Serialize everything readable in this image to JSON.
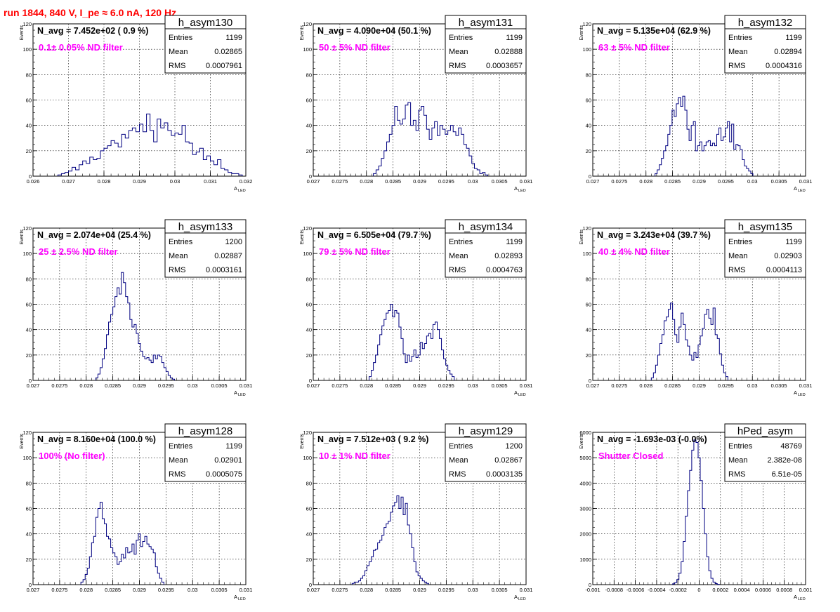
{
  "page": {
    "title": "run 1844,   840 V, I_pe ≈ 6.0 nA, 120 Hz"
  },
  "colors": {
    "histogram_line": "#000080",
    "filter_text": "#ff00ff",
    "title_text": "#ff0000",
    "grid": "#000000"
  },
  "chart_data": [
    {
      "type": "histogram",
      "hist_name": "h_asym130",
      "navg": "N_avg = 7.452e+02 ( 0.9 %)",
      "filter_label": "0.1± 0.05% ND filter",
      "stats": [
        [
          "Entries",
          "1199"
        ],
        [
          "Mean",
          "0.02865"
        ],
        [
          "RMS",
          "0.0007961"
        ]
      ],
      "ylabel": "Events",
      "xlabel": "A",
      "xlabel_sub": "LED",
      "xlim": [
        0.026,
        0.032
      ],
      "ylim": [
        0,
        120
      ],
      "xticks": [
        0.026,
        0.027,
        0.028,
        0.029,
        0.03,
        0.031,
        0.032
      ],
      "xtick_labels": [
        "0.026",
        "0.027",
        "0.028",
        "0.029",
        "0.03",
        "0.031",
        "0.032"
      ],
      "yticks": [
        0,
        20,
        40,
        60,
        80,
        100,
        120
      ],
      "ytick_labels": [
        "0",
        "20",
        "40",
        "60",
        "80",
        "100",
        "120"
      ],
      "x_start": 0.0267,
      "bin_width": 0.0001,
      "counts": [
        1,
        2,
        3,
        4,
        7,
        5,
        9,
        12,
        10,
        15,
        13,
        14,
        20,
        22,
        24,
        28,
        26,
        23,
        33,
        30,
        36,
        38,
        35,
        41,
        35,
        49,
        36,
        27,
        45,
        38,
        42,
        36,
        32,
        34,
        33,
        40,
        27,
        26,
        17,
        19,
        22,
        13,
        16,
        12,
        9,
        13,
        6,
        5,
        3,
        2,
        2,
        1
      ]
    },
    {
      "type": "histogram",
      "hist_name": "h_asym131",
      "navg": "N_avg = 4.090e+04 (50.1 %)",
      "filter_label": " 50 ± 5% ND filter",
      "stats": [
        [
          "Entries",
          "1199"
        ],
        [
          "Mean",
          "0.02888"
        ],
        [
          "RMS",
          "0.0003657"
        ]
      ],
      "ylabel": "Events",
      "xlabel": "A",
      "xlabel_sub": "LED",
      "xlim": [
        0.027,
        0.031
      ],
      "ylim": [
        0,
        120
      ],
      "xticks": [
        0.027,
        0.0275,
        0.028,
        0.0285,
        0.029,
        0.0295,
        0.03,
        0.0305,
        0.031
      ],
      "xtick_labels": [
        "0.027",
        "0.0275",
        "0.028",
        "0.0285",
        "0.029",
        "0.0295",
        "0.03",
        "0.0305",
        "0.031"
      ],
      "yticks": [
        0,
        20,
        40,
        60,
        80,
        100,
        120
      ],
      "ytick_labels": [
        "0",
        "20",
        "40",
        "60",
        "80",
        "100",
        "120"
      ],
      "x_start": 0.02813,
      "bin_width": 5e-05,
      "counts": [
        2,
        5,
        8,
        14,
        20,
        27,
        33,
        40,
        55,
        44,
        41,
        45,
        56,
        58,
        40,
        44,
        36,
        52,
        55,
        48,
        37,
        29,
        38,
        43,
        32,
        40,
        37,
        33,
        36,
        40,
        35,
        32,
        38,
        33,
        25,
        22,
        16,
        10,
        6,
        5,
        2,
        3,
        1
      ]
    },
    {
      "type": "histogram",
      "hist_name": "h_asym132",
      "navg": "N_avg = 5.135e+04 (62.9 %)",
      "filter_label": " 63 ± 5% ND filter",
      "stats": [
        [
          "Entries",
          "1199"
        ],
        [
          "Mean",
          "0.02894"
        ],
        [
          "RMS",
          "0.0004316"
        ]
      ],
      "ylabel": "Events",
      "xlabel": "A",
      "xlabel_sub": "LED",
      "xlim": [
        0.027,
        0.031
      ],
      "ylim": [
        0,
        120
      ],
      "xticks": [
        0.027,
        0.0275,
        0.028,
        0.0285,
        0.029,
        0.0295,
        0.03,
        0.0305,
        0.031
      ],
      "xtick_labels": [
        "0.027",
        "0.0275",
        "0.028",
        "0.0285",
        "0.029",
        "0.0295",
        "0.03",
        "0.0305",
        "0.031"
      ],
      "yticks": [
        0,
        20,
        40,
        60,
        80,
        100,
        120
      ],
      "ytick_labels": [
        "0",
        "20",
        "40",
        "60",
        "80",
        "100",
        "120"
      ],
      "x_start": 0.02817,
      "bin_width": 4e-05,
      "counts": [
        2,
        5,
        9,
        14,
        20,
        24,
        33,
        40,
        52,
        47,
        57,
        62,
        55,
        63,
        52,
        37,
        28,
        40,
        43,
        20,
        24,
        27,
        20,
        24,
        27,
        28,
        24,
        26,
        24,
        33,
        38,
        28,
        31,
        38,
        43,
        27,
        41,
        21,
        25,
        24,
        21,
        13,
        8,
        6,
        4,
        2
      ]
    },
    {
      "type": "histogram",
      "hist_name": "h_asym133",
      "navg": "N_avg = 2.074e+04 (25.4 %)",
      "filter_label": " 25 ± 2.5% ND filter",
      "stats": [
        [
          "Entries",
          "1200"
        ],
        [
          "Mean",
          "0.02887"
        ],
        [
          "RMS",
          "0.0003161"
        ]
      ],
      "ylabel": "Events",
      "xlabel": "A",
      "xlabel_sub": "LED",
      "xlim": [
        0.027,
        0.031
      ],
      "ylim": [
        0,
        120
      ],
      "xticks": [
        0.027,
        0.0275,
        0.028,
        0.0285,
        0.029,
        0.0295,
        0.03,
        0.0305,
        0.031
      ],
      "xtick_labels": [
        "0.027",
        "0.0275",
        "0.028",
        "0.0285",
        "0.029",
        "0.0295",
        "0.03",
        "0.0305",
        "0.031"
      ],
      "yticks": [
        0,
        20,
        40,
        60,
        80,
        100,
        120
      ],
      "ytick_labels": [
        "0",
        "20",
        "40",
        "60",
        "80",
        "100",
        "120"
      ],
      "x_start": 0.02818,
      "bin_width": 4e-05,
      "counts": [
        2,
        5,
        10,
        17,
        25,
        36,
        46,
        52,
        58,
        66,
        73,
        68,
        85,
        77,
        66,
        61,
        48,
        42,
        44,
        37,
        29,
        23,
        19,
        17,
        18,
        16,
        14,
        20,
        17,
        20,
        19,
        14,
        10,
        7,
        4,
        2,
        1
      ]
    },
    {
      "type": "histogram",
      "hist_name": "h_asym134",
      "navg": "N_avg = 6.505e+04 (79.7 %)",
      "filter_label": " 79 ± 5% ND filter",
      "stats": [
        [
          "Entries",
          "1199"
        ],
        [
          "Mean",
          "0.02893"
        ],
        [
          "RMS",
          "0.0004763"
        ]
      ],
      "ylabel": "Events",
      "xlabel": "A",
      "xlabel_sub": "LED",
      "xlim": [
        0.027,
        0.031
      ],
      "ylim": [
        0,
        120
      ],
      "xticks": [
        0.027,
        0.0275,
        0.028,
        0.0285,
        0.029,
        0.0295,
        0.03,
        0.0305,
        0.031
      ],
      "xtick_labels": [
        "0.027",
        "0.0275",
        "0.028",
        "0.0285",
        "0.029",
        "0.0295",
        "0.03",
        "0.0305",
        "0.031"
      ],
      "yticks": [
        0,
        20,
        40,
        60,
        80,
        100,
        120
      ],
      "ytick_labels": [
        "0",
        "20",
        "40",
        "60",
        "80",
        "100",
        "120"
      ],
      "x_start": 0.02805,
      "bin_width": 4e-05,
      "counts": [
        3,
        8,
        14,
        20,
        28,
        36,
        43,
        48,
        53,
        55,
        60,
        50,
        55,
        53,
        42,
        33,
        21,
        14,
        20,
        15,
        19,
        24,
        18,
        20,
        30,
        25,
        29,
        35,
        37,
        33,
        44,
        46,
        40,
        33,
        24,
        17,
        12,
        8,
        5,
        3
      ]
    },
    {
      "type": "histogram",
      "hist_name": "h_asym135",
      "navg": "N_avg = 3.243e+04 (39.7 %)",
      "filter_label": " 40 ± 4% ND filter",
      "stats": [
        [
          "Entries",
          "1199"
        ],
        [
          "Mean",
          "0.02903"
        ],
        [
          "RMS",
          "0.0004113"
        ]
      ],
      "ylabel": "Events",
      "xlabel": "A",
      "xlabel_sub": "LED",
      "xlim": [
        0.027,
        0.031
      ],
      "ylim": [
        0,
        120
      ],
      "xticks": [
        0.027,
        0.0275,
        0.028,
        0.0285,
        0.029,
        0.0295,
        0.03,
        0.0305,
        0.031
      ],
      "xtick_labels": [
        "0.027",
        "0.0275",
        "0.028",
        "0.0285",
        "0.029",
        "0.0295",
        "0.03",
        "0.0305",
        "0.031"
      ],
      "yticks": [
        0,
        20,
        40,
        60,
        80,
        100,
        120
      ],
      "ytick_labels": [
        "0",
        "20",
        "40",
        "60",
        "80",
        "100",
        "120"
      ],
      "x_start": 0.0281,
      "bin_width": 4e-05,
      "counts": [
        2,
        6,
        12,
        20,
        29,
        36,
        47,
        50,
        56,
        61,
        48,
        36,
        30,
        42,
        53,
        44,
        32,
        27,
        20,
        16,
        22,
        18,
        28,
        35,
        41,
        52,
        56,
        49,
        44,
        57,
        36,
        33,
        21,
        12,
        6,
        3
      ]
    },
    {
      "type": "histogram",
      "hist_name": "h_asym128",
      "navg": "N_avg = 8.160e+04 (100.0 %)",
      "filter_label": " 100% (No filter)",
      "stats": [
        [
          "Entries",
          "1199"
        ],
        [
          "Mean",
          "0.02901"
        ],
        [
          "RMS",
          "0.0005075"
        ]
      ],
      "ylabel": "Events",
      "xlabel": "A",
      "xlabel_sub": "LED",
      "xlim": [
        0.027,
        0.031
      ],
      "ylim": [
        0,
        120
      ],
      "xticks": [
        0.027,
        0.0275,
        0.028,
        0.0285,
        0.029,
        0.0295,
        0.03,
        0.0305,
        0.031
      ],
      "xtick_labels": [
        "0.027",
        "0.0275",
        "0.028",
        "0.0285",
        "0.029",
        "0.0295",
        "0.03",
        "0.0305",
        "0.031"
      ],
      "yticks": [
        0,
        20,
        40,
        60,
        80,
        100,
        120
      ],
      "ytick_labels": [
        "0",
        "20",
        "40",
        "60",
        "80",
        "100",
        "120"
      ],
      "x_start": 0.0279,
      "bin_width": 4e-05,
      "counts": [
        2,
        4,
        8,
        13,
        22,
        33,
        38,
        53,
        60,
        65,
        52,
        48,
        38,
        36,
        29,
        25,
        22,
        16,
        18,
        24,
        21,
        29,
        25,
        26,
        32,
        24,
        35,
        40,
        30,
        34,
        38,
        32,
        30,
        28,
        25,
        14,
        9,
        5,
        2
      ]
    },
    {
      "type": "histogram",
      "hist_name": "h_asym129",
      "navg": "N_avg = 7.512e+03 ( 9.2 %)",
      "filter_label": "10 ± 1% ND filter",
      "stats": [
        [
          "Entries",
          "1200"
        ],
        [
          "Mean",
          "0.02867"
        ],
        [
          "RMS",
          "0.0003135"
        ]
      ],
      "ylabel": "Events",
      "xlabel": "A",
      "xlabel_sub": "LED",
      "xlim": [
        0.027,
        0.031
      ],
      "ylim": [
        0,
        120
      ],
      "xticks": [
        0.027,
        0.0275,
        0.028,
        0.0285,
        0.029,
        0.0295,
        0.03,
        0.0305,
        0.031
      ],
      "xtick_labels": [
        "0.027",
        "0.0275",
        "0.028",
        "0.0285",
        "0.029",
        "0.0295",
        "0.03",
        "0.0305",
        "0.031"
      ],
      "yticks": [
        0,
        20,
        40,
        60,
        80,
        100,
        120
      ],
      "ytick_labels": [
        "0",
        "20",
        "40",
        "60",
        "80",
        "100",
        "120"
      ],
      "x_start": 0.02773,
      "bin_width": 4e-05,
      "counts": [
        1,
        2,
        2,
        3,
        5,
        7,
        11,
        15,
        18,
        22,
        27,
        28,
        33,
        35,
        39,
        45,
        48,
        50,
        57,
        62,
        65,
        70,
        60,
        69,
        55,
        64,
        47,
        40,
        29,
        18,
        10,
        7,
        5,
        3,
        2,
        1
      ]
    },
    {
      "type": "histogram",
      "hist_name": "hPed_asym",
      "navg": "N_avg = -1.693e-03 (-0.0%)",
      "filter_label": "Shutter Closed",
      "stats": [
        [
          "Entries",
          "48769"
        ],
        [
          "Mean",
          "2.382e-08"
        ],
        [
          "RMS",
          "6.51e-05"
        ]
      ],
      "ylabel": "Events",
      "xlabel": "A",
      "xlabel_sub": "LED",
      "xlim": [
        -0.001,
        0.001
      ],
      "ylim": [
        0,
        6000
      ],
      "xticks": [
        -0.001,
        -0.0008,
        -0.0006,
        -0.0004,
        -0.0002,
        0,
        0.0002,
        0.0004,
        0.0006,
        0.0008,
        0.001
      ],
      "xtick_labels": [
        "-0.001",
        "-0.0008",
        "-0.0006",
        "-0.0004",
        "-0.0002",
        "0",
        "0.0002",
        "0.0004",
        "0.0006",
        "0.0008",
        "0.001"
      ],
      "yticks": [
        0,
        1000,
        2000,
        3000,
        4000,
        5000,
        6000
      ],
      "ytick_labels": [
        "0",
        "1000",
        "2000",
        "3000",
        "4000",
        "5000",
        "6000"
      ],
      "x_start": -0.00025,
      "bin_width": 2e-05,
      "counts": [
        30,
        80,
        200,
        450,
        900,
        1700,
        2700,
        3700,
        4500,
        5300,
        5700,
        5600,
        5000,
        4100,
        3000,
        2000,
        1100,
        550,
        250,
        100,
        40,
        10
      ]
    }
  ]
}
